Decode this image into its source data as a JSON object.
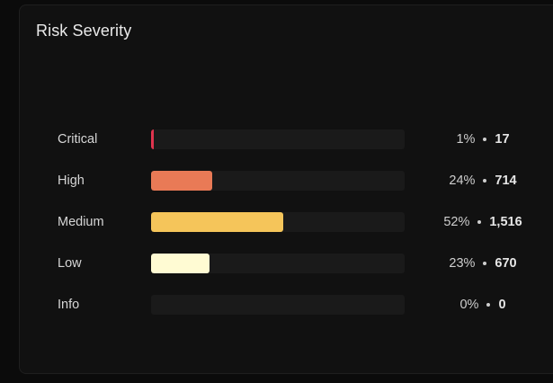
{
  "card": {
    "title": "Risk Severity"
  },
  "severity": [
    {
      "label": "Critical",
      "percent": "1%",
      "count": "17",
      "fraction": 0.01,
      "color": "#e0344e"
    },
    {
      "label": "High",
      "percent": "24%",
      "count": "714",
      "fraction": 0.24,
      "color": "#e97a56"
    },
    {
      "label": "Medium",
      "percent": "52%",
      "count": "1,516",
      "fraction": 0.52,
      "color": "#f5c55a"
    },
    {
      "label": "Low",
      "percent": "23%",
      "count": "670",
      "fraction": 0.23,
      "color": "#fffbd3"
    },
    {
      "label": "Info",
      "percent": "0%",
      "count": "0",
      "fraction": 0.0,
      "color": "#6e6e6e"
    }
  ]
}
